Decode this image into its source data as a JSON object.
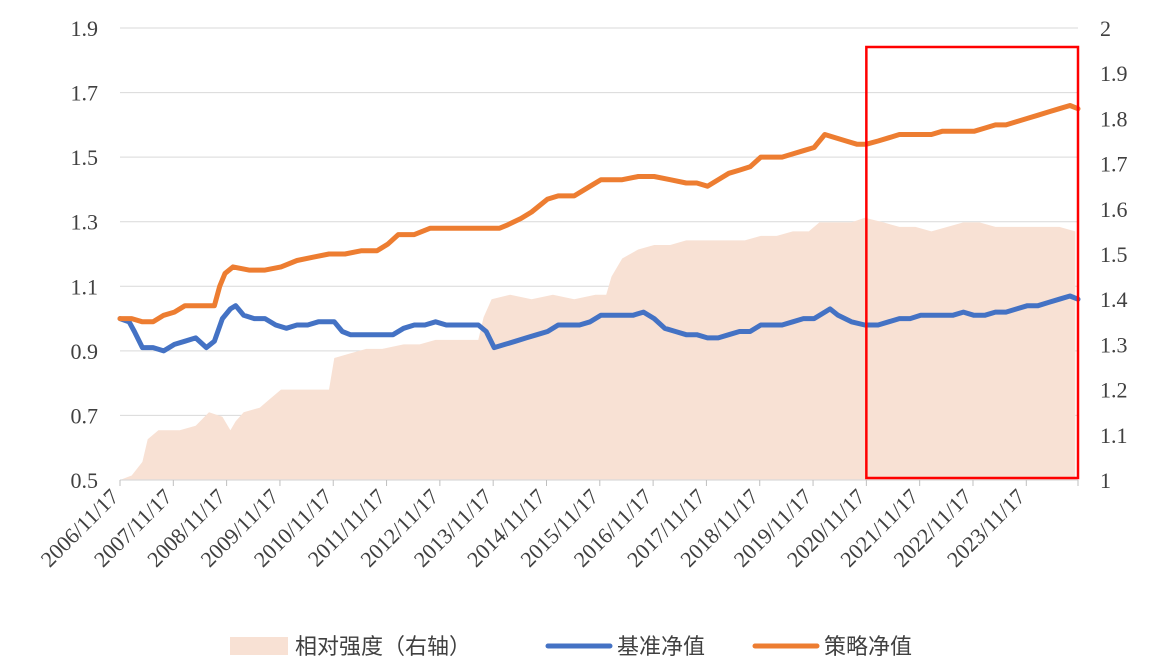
{
  "chart_data": {
    "type": "line",
    "title": "",
    "xlabel": "",
    "ylabel": "",
    "x_categories": [
      "2006/11/17",
      "2007/11/17",
      "2008/11/17",
      "2009/11/17",
      "2010/11/17",
      "2011/11/17",
      "2012/11/17",
      "2013/11/17",
      "2014/11/17",
      "2015/11/17",
      "2016/11/17",
      "2017/11/17",
      "2018/11/17",
      "2019/11/17",
      "2020/11/17",
      "2021/11/17",
      "2022/11/17",
      "2023/11/17"
    ],
    "x_range": [
      2006.88,
      2024.85
    ],
    "ylim_left": [
      0.5,
      1.9
    ],
    "yticks_left": [
      "0.5",
      "0.7",
      "0.9",
      "1.1",
      "1.3",
      "1.5",
      "1.7",
      "1.9"
    ],
    "ylim_right": [
      1,
      2
    ],
    "yticks_right": [
      "1",
      "1.1",
      "1.2",
      "1.3",
      "1.4",
      "1.5",
      "1.6",
      "1.7",
      "1.8",
      "1.9",
      "2"
    ],
    "grid": true,
    "legend_position": "bottom",
    "highlight_box": {
      "x_from": 2020.88,
      "x_to": 2024.85,
      "color": "#ff0000"
    },
    "series": [
      {
        "name": "相对强度（右轴）",
        "kind": "area",
        "axis": "right",
        "color": "#f8e1d4",
        "points": [
          [
            2006.88,
            1.0
          ],
          [
            2007.1,
            1.01
          ],
          [
            2007.3,
            1.04
          ],
          [
            2007.4,
            1.09
          ],
          [
            2007.6,
            1.11
          ],
          [
            2007.8,
            1.11
          ],
          [
            2008.0,
            1.11
          ],
          [
            2008.3,
            1.12
          ],
          [
            2008.55,
            1.15
          ],
          [
            2008.8,
            1.14
          ],
          [
            2008.95,
            1.11
          ],
          [
            2009.05,
            1.13
          ],
          [
            2009.2,
            1.15
          ],
          [
            2009.5,
            1.16
          ],
          [
            2009.7,
            1.18
          ],
          [
            2009.9,
            1.2
          ],
          [
            2010.2,
            1.2
          ],
          [
            2010.5,
            1.2
          ],
          [
            2010.8,
            1.2
          ],
          [
            2010.9,
            1.27
          ],
          [
            2011.2,
            1.28
          ],
          [
            2011.5,
            1.29
          ],
          [
            2011.8,
            1.29
          ],
          [
            2012.2,
            1.3
          ],
          [
            2012.5,
            1.3
          ],
          [
            2012.8,
            1.31
          ],
          [
            2013.0,
            1.31
          ],
          [
            2013.3,
            1.31
          ],
          [
            2013.6,
            1.31
          ],
          [
            2013.7,
            1.36
          ],
          [
            2013.85,
            1.4
          ],
          [
            2014.2,
            1.41
          ],
          [
            2014.6,
            1.4
          ],
          [
            2015.0,
            1.41
          ],
          [
            2015.4,
            1.4
          ],
          [
            2015.8,
            1.41
          ],
          [
            2016.0,
            1.41
          ],
          [
            2016.1,
            1.45
          ],
          [
            2016.3,
            1.49
          ],
          [
            2016.6,
            1.51
          ],
          [
            2016.9,
            1.52
          ],
          [
            2017.2,
            1.52
          ],
          [
            2017.5,
            1.53
          ],
          [
            2017.9,
            1.53
          ],
          [
            2018.2,
            1.53
          ],
          [
            2018.6,
            1.53
          ],
          [
            2018.9,
            1.54
          ],
          [
            2019.2,
            1.54
          ],
          [
            2019.5,
            1.55
          ],
          [
            2019.8,
            1.55
          ],
          [
            2020.0,
            1.57
          ],
          [
            2020.3,
            1.57
          ],
          [
            2020.6,
            1.57
          ],
          [
            2020.85,
            1.58
          ],
          [
            2021.2,
            1.57
          ],
          [
            2021.5,
            1.56
          ],
          [
            2021.8,
            1.56
          ],
          [
            2022.1,
            1.55
          ],
          [
            2022.4,
            1.56
          ],
          [
            2022.7,
            1.57
          ],
          [
            2023.0,
            1.57
          ],
          [
            2023.3,
            1.56
          ],
          [
            2023.6,
            1.56
          ],
          [
            2023.9,
            1.56
          ],
          [
            2024.2,
            1.56
          ],
          [
            2024.5,
            1.56
          ],
          [
            2024.8,
            1.55
          ]
        ]
      },
      {
        "name": "基准净值",
        "kind": "line",
        "axis": "left",
        "color": "#4472c4",
        "points": [
          [
            2006.88,
            1.0
          ],
          [
            2007.05,
            0.99
          ],
          [
            2007.15,
            0.96
          ],
          [
            2007.3,
            0.91
          ],
          [
            2007.5,
            0.91
          ],
          [
            2007.7,
            0.9
          ],
          [
            2007.9,
            0.92
          ],
          [
            2008.1,
            0.93
          ],
          [
            2008.3,
            0.94
          ],
          [
            2008.5,
            0.91
          ],
          [
            2008.65,
            0.93
          ],
          [
            2008.8,
            1.0
          ],
          [
            2008.95,
            1.03
          ],
          [
            2009.05,
            1.04
          ],
          [
            2009.2,
            1.01
          ],
          [
            2009.4,
            1.0
          ],
          [
            2009.6,
            1.0
          ],
          [
            2009.8,
            0.98
          ],
          [
            2010.0,
            0.97
          ],
          [
            2010.2,
            0.98
          ],
          [
            2010.4,
            0.98
          ],
          [
            2010.6,
            0.99
          ],
          [
            2010.75,
            0.99
          ],
          [
            2010.9,
            0.99
          ],
          [
            2011.05,
            0.96
          ],
          [
            2011.2,
            0.95
          ],
          [
            2011.4,
            0.95
          ],
          [
            2011.6,
            0.95
          ],
          [
            2011.8,
            0.95
          ],
          [
            2012.0,
            0.95
          ],
          [
            2012.2,
            0.97
          ],
          [
            2012.4,
            0.98
          ],
          [
            2012.6,
            0.98
          ],
          [
            2012.8,
            0.99
          ],
          [
            2013.0,
            0.98
          ],
          [
            2013.2,
            0.98
          ],
          [
            2013.4,
            0.98
          ],
          [
            2013.6,
            0.98
          ],
          [
            2013.75,
            0.96
          ],
          [
            2013.9,
            0.91
          ],
          [
            2014.1,
            0.92
          ],
          [
            2014.3,
            0.93
          ],
          [
            2014.5,
            0.94
          ],
          [
            2014.7,
            0.95
          ],
          [
            2014.9,
            0.96
          ],
          [
            2015.1,
            0.98
          ],
          [
            2015.3,
            0.98
          ],
          [
            2015.5,
            0.98
          ],
          [
            2015.7,
            0.99
          ],
          [
            2015.9,
            1.01
          ],
          [
            2016.1,
            1.01
          ],
          [
            2016.3,
            1.01
          ],
          [
            2016.5,
            1.01
          ],
          [
            2016.7,
            1.02
          ],
          [
            2016.9,
            1.0
          ],
          [
            2017.1,
            0.97
          ],
          [
            2017.3,
            0.96
          ],
          [
            2017.5,
            0.95
          ],
          [
            2017.7,
            0.95
          ],
          [
            2017.9,
            0.94
          ],
          [
            2018.1,
            0.94
          ],
          [
            2018.3,
            0.95
          ],
          [
            2018.5,
            0.96
          ],
          [
            2018.7,
            0.96
          ],
          [
            2018.9,
            0.98
          ],
          [
            2019.1,
            0.98
          ],
          [
            2019.3,
            0.98
          ],
          [
            2019.5,
            0.99
          ],
          [
            2019.7,
            1.0
          ],
          [
            2019.9,
            1.0
          ],
          [
            2020.1,
            1.02
          ],
          [
            2020.2,
            1.03
          ],
          [
            2020.35,
            1.01
          ],
          [
            2020.6,
            0.99
          ],
          [
            2020.85,
            0.98
          ],
          [
            2021.1,
            0.98
          ],
          [
            2021.3,
            0.99
          ],
          [
            2021.5,
            1.0
          ],
          [
            2021.7,
            1.0
          ],
          [
            2021.9,
            1.01
          ],
          [
            2022.1,
            1.01
          ],
          [
            2022.3,
            1.01
          ],
          [
            2022.5,
            1.01
          ],
          [
            2022.7,
            1.02
          ],
          [
            2022.9,
            1.01
          ],
          [
            2023.1,
            1.01
          ],
          [
            2023.3,
            1.02
          ],
          [
            2023.5,
            1.02
          ],
          [
            2023.7,
            1.03
          ],
          [
            2023.9,
            1.04
          ],
          [
            2024.1,
            1.04
          ],
          [
            2024.3,
            1.05
          ],
          [
            2024.5,
            1.06
          ],
          [
            2024.7,
            1.07
          ],
          [
            2024.85,
            1.06
          ]
        ]
      },
      {
        "name": "策略净值",
        "kind": "line",
        "axis": "left",
        "color": "#ed7d31",
        "points": [
          [
            2006.88,
            1.0
          ],
          [
            2007.1,
            1.0
          ],
          [
            2007.3,
            0.99
          ],
          [
            2007.5,
            0.99
          ],
          [
            2007.7,
            1.01
          ],
          [
            2007.9,
            1.02
          ],
          [
            2008.1,
            1.04
          ],
          [
            2008.4,
            1.04
          ],
          [
            2008.65,
            1.04
          ],
          [
            2008.75,
            1.1
          ],
          [
            2008.85,
            1.14
          ],
          [
            2009.0,
            1.16
          ],
          [
            2009.3,
            1.15
          ],
          [
            2009.6,
            1.15
          ],
          [
            2009.9,
            1.16
          ],
          [
            2010.2,
            1.18
          ],
          [
            2010.5,
            1.19
          ],
          [
            2010.8,
            1.2
          ],
          [
            2011.1,
            1.2
          ],
          [
            2011.4,
            1.21
          ],
          [
            2011.7,
            1.21
          ],
          [
            2011.9,
            1.23
          ],
          [
            2012.1,
            1.26
          ],
          [
            2012.4,
            1.26
          ],
          [
            2012.7,
            1.28
          ],
          [
            2013.0,
            1.28
          ],
          [
            2013.3,
            1.28
          ],
          [
            2013.6,
            1.28
          ],
          [
            2013.85,
            1.28
          ],
          [
            2014.0,
            1.28
          ],
          [
            2014.15,
            1.29
          ],
          [
            2014.4,
            1.31
          ],
          [
            2014.6,
            1.33
          ],
          [
            2014.9,
            1.37
          ],
          [
            2015.1,
            1.38
          ],
          [
            2015.4,
            1.38
          ],
          [
            2015.7,
            1.41
          ],
          [
            2015.9,
            1.43
          ],
          [
            2016.1,
            1.43
          ],
          [
            2016.3,
            1.43
          ],
          [
            2016.6,
            1.44
          ],
          [
            2016.9,
            1.44
          ],
          [
            2017.2,
            1.43
          ],
          [
            2017.5,
            1.42
          ],
          [
            2017.7,
            1.42
          ],
          [
            2017.9,
            1.41
          ],
          [
            2018.1,
            1.43
          ],
          [
            2018.3,
            1.45
          ],
          [
            2018.5,
            1.46
          ],
          [
            2018.7,
            1.47
          ],
          [
            2018.9,
            1.5
          ],
          [
            2019.1,
            1.5
          ],
          [
            2019.3,
            1.5
          ],
          [
            2019.5,
            1.51
          ],
          [
            2019.7,
            1.52
          ],
          [
            2019.9,
            1.53
          ],
          [
            2020.1,
            1.57
          ],
          [
            2020.3,
            1.56
          ],
          [
            2020.5,
            1.55
          ],
          [
            2020.7,
            1.54
          ],
          [
            2020.88,
            1.54
          ],
          [
            2021.1,
            1.55
          ],
          [
            2021.3,
            1.56
          ],
          [
            2021.5,
            1.57
          ],
          [
            2021.7,
            1.57
          ],
          [
            2021.9,
            1.57
          ],
          [
            2022.1,
            1.57
          ],
          [
            2022.3,
            1.58
          ],
          [
            2022.5,
            1.58
          ],
          [
            2022.7,
            1.58
          ],
          [
            2022.9,
            1.58
          ],
          [
            2023.1,
            1.59
          ],
          [
            2023.3,
            1.6
          ],
          [
            2023.5,
            1.6
          ],
          [
            2023.7,
            1.61
          ],
          [
            2023.9,
            1.62
          ],
          [
            2024.1,
            1.63
          ],
          [
            2024.3,
            1.64
          ],
          [
            2024.5,
            1.65
          ],
          [
            2024.7,
            1.66
          ],
          [
            2024.85,
            1.65
          ]
        ]
      }
    ]
  }
}
